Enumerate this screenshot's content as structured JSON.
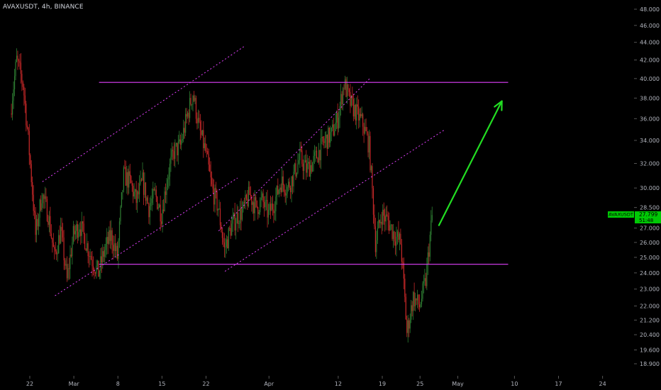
{
  "header": {
    "symbol_label": "AVAXUSDT, 4h, BINANCE"
  },
  "price_badge": {
    "symbol": "AVAXUSDT",
    "price": "27.799",
    "countdown": "51:48",
    "color": "#00c805"
  },
  "colors": {
    "background": "#000000",
    "axis_text": "#b2b5be",
    "candle_up": "#2e7d32",
    "candle_down": "#c62828",
    "level_line": "#e040fb",
    "channel_line": "#e040fb",
    "arrow": "#22dd22"
  },
  "chart_data": {
    "type": "candlestick",
    "title": "AVAXUSDT, 4h, BINANCE",
    "y_scale": "log",
    "ylim": [
      18.3,
      49.2
    ],
    "y_ticks": [
      "48.000",
      "46.000",
      "44.000",
      "42.000",
      "40.000",
      "38.000",
      "36.000",
      "34.000",
      "32.000",
      "30.000",
      "28.500",
      "27.000",
      "26.000",
      "25.000",
      "24.000",
      "23.000",
      "22.000",
      "21.200",
      "20.400",
      "19.600",
      "18.900"
    ],
    "x_ticks": [
      "22",
      "Mar",
      "8",
      "15",
      "22",
      "Apr",
      "12",
      "19",
      "25",
      "May",
      "10",
      "17",
      "24"
    ],
    "price_path": [
      {
        "date": "2021-02-19",
        "price": 36.5
      },
      {
        "date": "2021-02-20",
        "price": 42.0
      },
      {
        "date": "2021-02-21",
        "price": 39.5
      },
      {
        "date": "2021-02-22",
        "price": 33.0
      },
      {
        "date": "2021-02-23",
        "price": 26.5
      },
      {
        "date": "2021-02-24",
        "price": 29.5
      },
      {
        "date": "2021-02-25",
        "price": 28.0
      },
      {
        "date": "2021-02-26",
        "price": 25.0
      },
      {
        "date": "2021-02-27",
        "price": 26.8
      },
      {
        "date": "2021-02-28",
        "price": 23.5
      },
      {
        "date": "2021-03-01",
        "price": 26.5
      },
      {
        "date": "2021-03-02",
        "price": 27.3
      },
      {
        "date": "2021-03-03",
        "price": 26.0
      },
      {
        "date": "2021-03-04",
        "price": 24.8
      },
      {
        "date": "2021-03-05",
        "price": 24.0
      },
      {
        "date": "2021-03-06",
        "price": 25.5
      },
      {
        "date": "2021-03-07",
        "price": 26.5
      },
      {
        "date": "2021-03-08",
        "price": 25.0
      },
      {
        "date": "2021-03-09",
        "price": 31.0
      },
      {
        "date": "2021-03-10",
        "price": 30.5
      },
      {
        "date": "2021-03-11",
        "price": 29.0
      },
      {
        "date": "2021-03-12",
        "price": 30.5
      },
      {
        "date": "2021-03-13",
        "price": 28.5
      },
      {
        "date": "2021-03-14",
        "price": 29.5
      },
      {
        "date": "2021-03-15",
        "price": 28.0
      },
      {
        "date": "2021-03-16",
        "price": 31.0
      },
      {
        "date": "2021-03-17",
        "price": 33.0
      },
      {
        "date": "2021-03-18",
        "price": 33.5
      },
      {
        "date": "2021-03-19",
        "price": 36.0
      },
      {
        "date": "2021-03-20",
        "price": 38.5
      },
      {
        "date": "2021-03-21",
        "price": 35.0
      },
      {
        "date": "2021-03-22",
        "price": 33.0
      },
      {
        "date": "2021-03-23",
        "price": 30.0
      },
      {
        "date": "2021-03-24",
        "price": 28.5
      },
      {
        "date": "2021-03-25",
        "price": 25.5
      },
      {
        "date": "2021-03-26",
        "price": 27.0
      },
      {
        "date": "2021-03-27",
        "price": 27.8
      },
      {
        "date": "2021-03-28",
        "price": 28.3
      },
      {
        "date": "2021-03-29",
        "price": 29.5
      },
      {
        "date": "2021-03-30",
        "price": 28.5
      },
      {
        "date": "2021-03-31",
        "price": 29.0
      },
      {
        "date": "2021-04-01",
        "price": 28.0
      },
      {
        "date": "2021-04-02",
        "price": 29.0
      },
      {
        "date": "2021-04-03",
        "price": 30.5
      },
      {
        "date": "2021-04-04",
        "price": 30.0
      },
      {
        "date": "2021-04-05",
        "price": 31.0
      },
      {
        "date": "2021-04-06",
        "price": 32.5
      },
      {
        "date": "2021-04-07",
        "price": 31.5
      },
      {
        "date": "2021-04-08",
        "price": 32.0
      },
      {
        "date": "2021-04-09",
        "price": 33.0
      },
      {
        "date": "2021-04-10",
        "price": 34.0
      },
      {
        "date": "2021-04-11",
        "price": 34.5
      },
      {
        "date": "2021-04-12",
        "price": 36.0
      },
      {
        "date": "2021-04-13",
        "price": 39.5
      },
      {
        "date": "2021-04-14",
        "price": 37.5
      },
      {
        "date": "2021-04-15",
        "price": 36.5
      },
      {
        "date": "2021-04-16",
        "price": 35.5
      },
      {
        "date": "2021-04-17",
        "price": 33.5
      },
      {
        "date": "2021-04-18",
        "price": 26.0
      },
      {
        "date": "2021-04-19",
        "price": 28.0
      },
      {
        "date": "2021-04-20",
        "price": 27.5
      },
      {
        "date": "2021-04-21",
        "price": 26.5
      },
      {
        "date": "2021-04-22",
        "price": 26.0
      },
      {
        "date": "2021-04-23",
        "price": 20.5
      },
      {
        "date": "2021-04-24",
        "price": 22.5
      },
      {
        "date": "2021-04-25",
        "price": 22.0
      },
      {
        "date": "2021-04-26",
        "price": 23.5
      },
      {
        "date": "2021-04-27",
        "price": 27.8
      }
    ],
    "annotations": {
      "horizontal_levels": [
        {
          "name": "resistance",
          "price": 39.6,
          "from": "2021-03-05",
          "to": "2021-05-09"
        },
        {
          "name": "support",
          "price": 24.55,
          "from": "2021-03-05",
          "to": "2021-05-09"
        }
      ],
      "channel_lines": [
        {
          "name": "channel-1-upper",
          "from": {
            "date": "2021-02-24",
            "price": 30.5
          },
          "to": {
            "date": "2021-03-28",
            "price": 43.5
          }
        },
        {
          "name": "channel-1-lower",
          "from": {
            "date": "2021-02-26",
            "price": 22.6
          },
          "to": {
            "date": "2021-03-27",
            "price": 30.8
          }
        },
        {
          "name": "channel-2-upper",
          "from": {
            "date": "2021-03-24",
            "price": 26.8
          },
          "to": {
            "date": "2021-04-17",
            "price": 40.0
          }
        },
        {
          "name": "channel-2-lower",
          "from": {
            "date": "2021-03-25",
            "price": 24.1
          },
          "to": {
            "date": "2021-04-29",
            "price": 35.0
          }
        }
      ],
      "arrow": {
        "from": {
          "date": "2021-04-28",
          "price": 27.2
        },
        "to": {
          "date": "2021-05-08",
          "price": 37.7
        }
      }
    }
  }
}
